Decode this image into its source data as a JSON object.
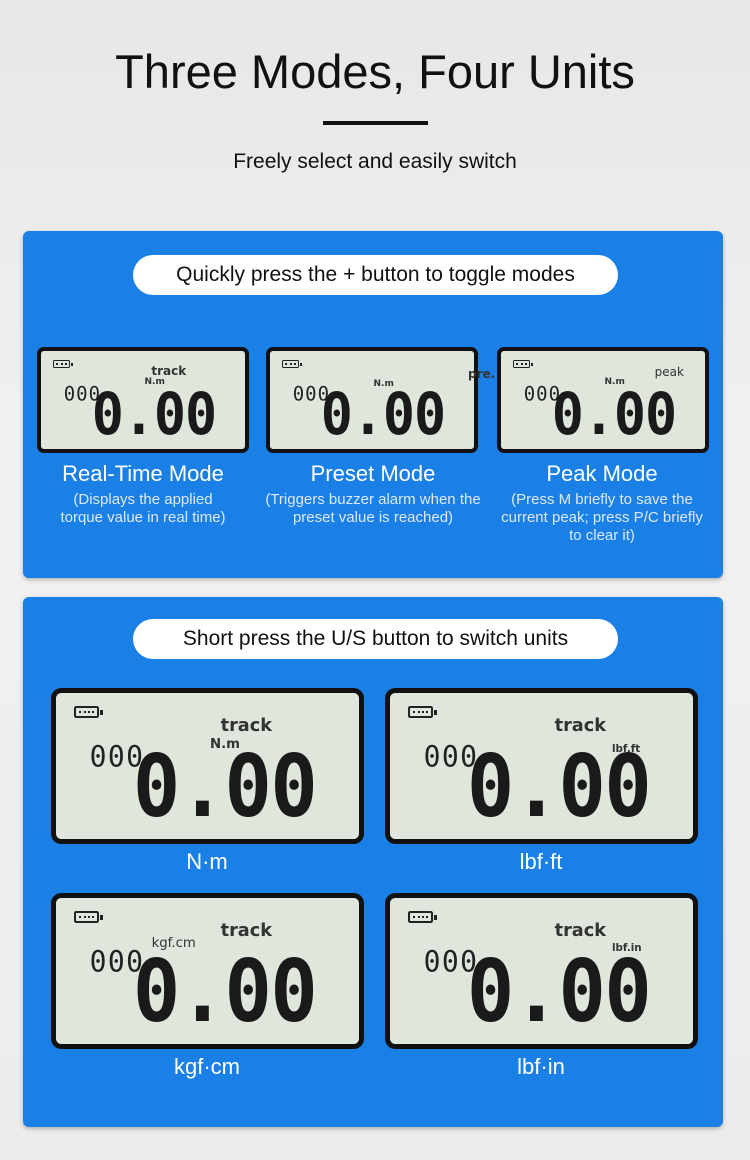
{
  "header": {
    "title": "Three Modes, Four Units",
    "subtitle": "Freely select and easily switch"
  },
  "modes": {
    "banner": "Quickly press the + button to toggle modes",
    "items": [
      {
        "name": "Real-Time Mode",
        "desc": "(Displays the applied torque value in real time)",
        "lcd": {
          "counter": "000",
          "mode": "track",
          "unit": "N.m",
          "value": "0.00"
        }
      },
      {
        "name": "Preset Mode",
        "desc": "(Triggers buzzer alarm when the preset value is reached)",
        "lcd": {
          "counter": "000",
          "mode": "pre.",
          "unit": "N.m",
          "value": "0.00"
        }
      },
      {
        "name": "Peak Mode",
        "desc": "(Press M briefly to save the current peak; press P/C briefly to clear it)",
        "lcd": {
          "counter": "000",
          "mode": "peak",
          "unit": "N.m",
          "value": "0.00"
        }
      }
    ]
  },
  "units": {
    "banner": "Short press the U/S button to switch units",
    "items": [
      {
        "name": "N·m",
        "lcd": {
          "counter": "000",
          "mode": "track",
          "unit": "N.m",
          "value": "0.00"
        }
      },
      {
        "name": "lbf·ft",
        "lcd": {
          "counter": "000",
          "mode": "track",
          "unit": "lbf.ft",
          "value": "0.00"
        }
      },
      {
        "name": "kgf·cm",
        "lcd": {
          "counter": "000",
          "mode": "track",
          "unit": "kgf.cm",
          "value": "0.00"
        }
      },
      {
        "name": "lbf·in",
        "lcd": {
          "counter": "000",
          "mode": "track",
          "unit": "lbf.in",
          "value": "0.00"
        }
      }
    ]
  }
}
